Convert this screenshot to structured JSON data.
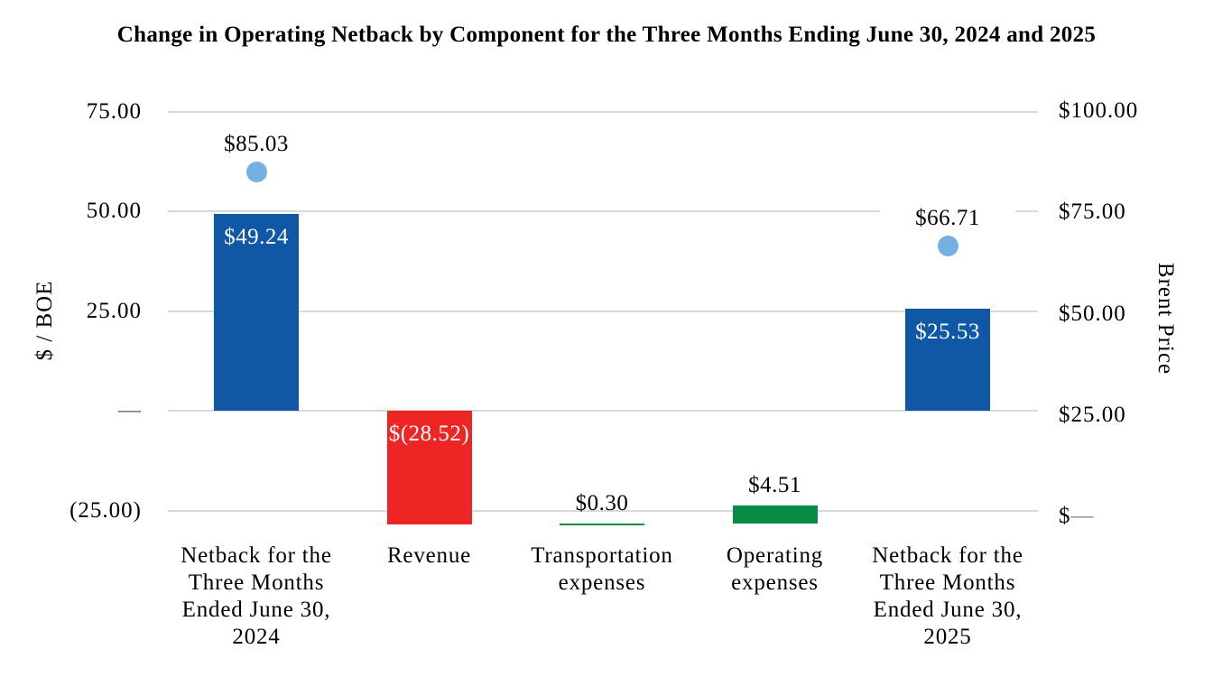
{
  "chart_data": {
    "type": "bar",
    "subtype": "waterfall-with-scatter-points",
    "title": "Change in Operating Netback by Component for the Three Months Ending June 30, 2024 and 2025",
    "grid": true,
    "legend": "none",
    "left_axis": {
      "title": "$ / BOE",
      "range": [
        -25,
        75
      ],
      "ticks": [
        {
          "label": "75.00",
          "value": 75
        },
        {
          "label": "50.00",
          "value": 50
        },
        {
          "label": "25.00",
          "value": 25
        },
        {
          "label": "—",
          "value": 0,
          "muted": true
        },
        {
          "label": "(25.00)",
          "value": -25
        }
      ]
    },
    "right_axis": {
      "title": "Brent Price",
      "range": [
        0,
        100
      ],
      "ticks": [
        {
          "label": "$100.00",
          "value": 100
        },
        {
          "label": "$75.00",
          "value": 75
        },
        {
          "label": "$50.00",
          "value": 50
        },
        {
          "label": "$25.00",
          "value": 25
        },
        {
          "label": "$—",
          "value": 0,
          "muted_dash": true
        }
      ]
    },
    "categories": [
      "Netback for the\nThree Months\nEnded June 30,\n2024",
      "Revenue",
      "Transportation\nexpenses",
      "Operating\nexpenses",
      "Netback for the\nThree Months\nEnded June 30,\n2025"
    ],
    "bars": [
      {
        "value": 49.24,
        "label": "$49.24",
        "from": 0,
        "to": 49.24,
        "color": "#1057A6",
        "label_placement": "inside",
        "label_color": "#FFFFFF"
      },
      {
        "value": -28.52,
        "label": "$(28.52)",
        "from": -28.52,
        "to": 0,
        "color": "#ED2524",
        "label_placement": "inside",
        "label_color": "#FFFFFF"
      },
      {
        "value": 0.3,
        "label": "$0.30",
        "from": -28.52,
        "to": -28.22,
        "color": "#098B45",
        "label_placement": "above",
        "label_color": "#000000"
      },
      {
        "value": 4.51,
        "label": "$4.51",
        "from": -28.22,
        "to": -23.71,
        "color": "#098B45",
        "label_placement": "above",
        "label_color": "#000000"
      },
      {
        "value": 25.53,
        "label": "$25.53",
        "from": 0,
        "to": 25.53,
        "color": "#1057A6",
        "label_placement": "inside",
        "label_color": "#FFFFFF"
      }
    ],
    "points": [
      {
        "category_index": 0,
        "value": 85.03,
        "label": "$85.03",
        "color": "#74B1E1",
        "series": "Brent Price"
      },
      {
        "category_index": 4,
        "value": 66.71,
        "label": "$66.71",
        "color": "#74B1E1",
        "series": "Brent Price"
      }
    ],
    "colors": {
      "gridline": "#D9D9D9",
      "zero_dash": "#595959",
      "text": "#000000",
      "background": "#FFFFFF"
    }
  }
}
